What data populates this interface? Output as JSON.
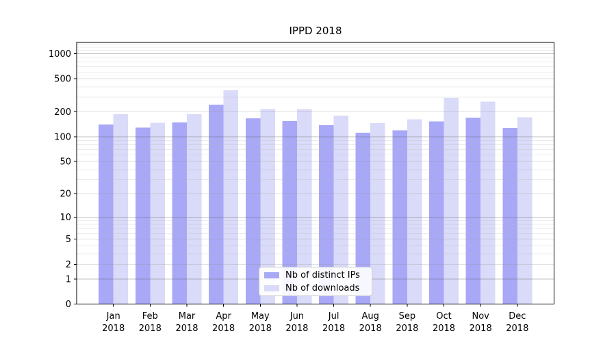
{
  "title": "IPPD 2018",
  "chart_data": {
    "type": "bar",
    "title": "IPPD 2018",
    "categories": [
      "Jan 2018",
      "Feb 2018",
      "Mar 2018",
      "Apr 2018",
      "May 2018",
      "Jun 2018",
      "Jul 2018",
      "Aug 2018",
      "Sep 2018",
      "Oct 2018",
      "Nov 2018",
      "Dec 2018"
    ],
    "series": [
      {
        "name": "Nb of distinct IPs",
        "color": "#a8a8f7",
        "values": [
          141,
          129,
          149,
          244,
          167,
          155,
          138,
          112,
          120,
          153,
          170,
          128
        ]
      },
      {
        "name": "Nb of downloads",
        "color": "#dadaf9",
        "values": [
          188,
          148,
          188,
          363,
          215,
          216,
          180,
          146,
          163,
          294,
          266,
          172
        ]
      }
    ],
    "xlabel": "",
    "ylabel": "",
    "yscale": "log1p",
    "yticks": [
      0,
      1,
      2,
      5,
      10,
      20,
      50,
      100,
      200,
      500,
      1000
    ],
    "minor_gridlines": [
      3,
      4,
      6,
      7,
      8,
      9,
      30,
      40,
      60,
      70,
      80,
      90,
      300,
      400,
      600,
      700,
      800,
      900,
      1100,
      1200,
      1300
    ],
    "ylim": [
      0,
      1365
    ],
    "grid": true,
    "legend_position": "lower center",
    "bar_group_width": 0.8
  }
}
